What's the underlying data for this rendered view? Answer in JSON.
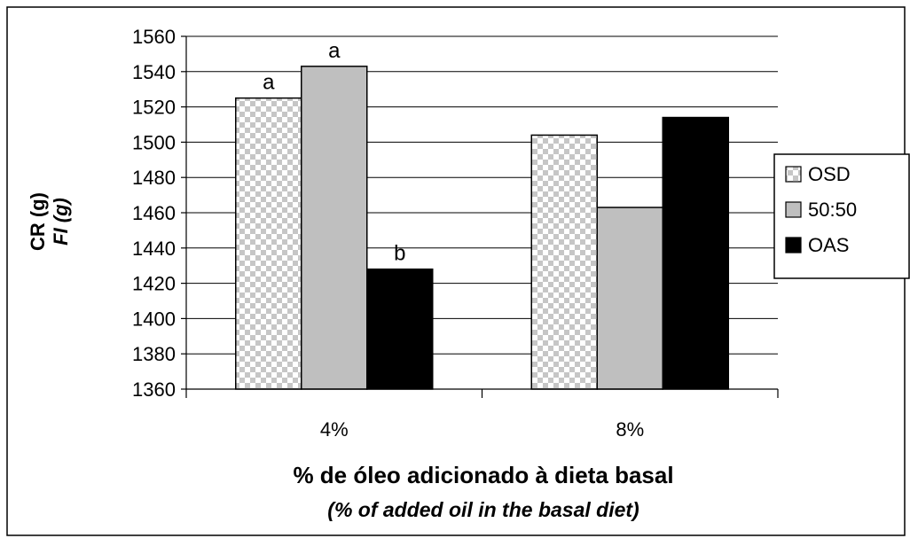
{
  "chart_data": {
    "type": "bar",
    "categories": [
      "4%",
      "8%"
    ],
    "series": [
      {
        "name": "OSD",
        "values": [
          1525,
          1504
        ],
        "color": "#d8d8d8",
        "pattern": "checker",
        "labels": [
          "a",
          ""
        ]
      },
      {
        "name": "50:50",
        "values": [
          1543,
          1463
        ],
        "color": "#bfbfbf",
        "pattern": "solid",
        "labels": [
          "a",
          ""
        ]
      },
      {
        "name": "OAS",
        "values": [
          1428,
          1514
        ],
        "color": "#000000",
        "pattern": "solid",
        "labels": [
          "b",
          ""
        ]
      }
    ],
    "ylim": [
      1360,
      1560
    ],
    "yticks": [
      1360,
      1380,
      1400,
      1420,
      1440,
      1460,
      1480,
      1500,
      1520,
      1540,
      1560
    ],
    "grid": true,
    "legend_position": "right",
    "ylabel": "CR (g)",
    "ylabel_en": "FI (g)",
    "xlabel": "% de óleo adicionado à dieta basal",
    "xlabel_en": "(% of added oil in the basal diet)"
  }
}
